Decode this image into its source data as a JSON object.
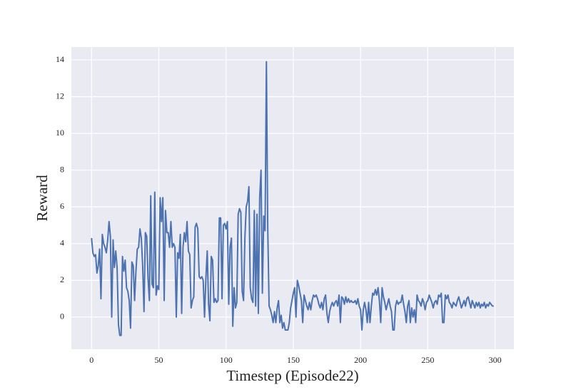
{
  "chart_data": {
    "type": "line",
    "xlabel": "Timestep (Episode22)",
    "ylabel": "Reward",
    "color": "#4c72b0",
    "grid": true,
    "background": "#eaeaf2",
    "xlim": [
      -15,
      314
    ],
    "ylim": [
      -1.75,
      14.7
    ],
    "xticks": [
      0,
      50,
      100,
      150,
      200,
      250,
      300
    ],
    "yticks": [
      0,
      2,
      4,
      6,
      8,
      10,
      12,
      14
    ],
    "x": [
      0,
      1,
      2,
      3,
      4,
      5,
      6,
      7,
      8,
      9,
      10,
      11,
      12,
      13,
      14,
      15,
      16,
      17,
      18,
      19,
      20,
      21,
      22,
      23,
      24,
      25,
      26,
      27,
      28,
      29,
      30,
      31,
      32,
      33,
      34,
      35,
      36,
      37,
      38,
      39,
      40,
      41,
      42,
      43,
      44,
      45,
      46,
      47,
      48,
      49,
      50,
      51,
      52,
      53,
      54,
      55,
      56,
      57,
      58,
      59,
      60,
      61,
      62,
      63,
      64,
      65,
      66,
      67,
      68,
      69,
      70,
      71,
      72,
      73,
      74,
      75,
      76,
      77,
      78,
      79,
      80,
      81,
      82,
      83,
      84,
      85,
      86,
      87,
      88,
      89,
      90,
      91,
      92,
      93,
      94,
      95,
      96,
      97,
      98,
      99,
      100,
      101,
      102,
      103,
      104,
      105,
      106,
      107,
      108,
      109,
      110,
      111,
      112,
      113,
      114,
      115,
      116,
      117,
      118,
      119,
      120,
      121,
      122,
      123,
      124,
      125,
      126,
      127,
      128,
      129,
      130,
      131,
      132,
      133,
      134,
      135,
      136,
      137,
      138,
      139,
      140,
      141,
      142,
      143,
      144,
      145,
      146,
      147,
      148,
      149,
      150,
      151,
      152,
      153,
      154,
      155,
      156,
      157,
      158,
      159,
      160,
      161,
      162,
      163,
      164,
      165,
      166,
      167,
      168,
      169,
      170,
      171,
      172,
      173,
      174,
      175,
      176,
      177,
      178,
      179,
      180,
      181,
      182,
      183,
      184,
      185,
      186,
      187,
      188,
      189,
      190,
      191,
      192,
      193,
      194,
      195,
      196,
      197,
      198,
      199,
      200,
      201,
      202,
      203,
      204,
      205,
      206,
      207,
      208,
      209,
      210,
      211,
      212,
      213,
      214,
      215,
      216,
      217,
      218,
      219,
      220,
      221,
      222,
      223,
      224,
      225,
      226,
      227,
      228,
      229,
      230,
      231,
      232,
      233,
      234,
      235,
      236,
      237,
      238,
      239,
      240,
      241,
      242,
      243,
      244,
      245,
      246,
      247,
      248,
      249,
      250,
      251,
      252,
      253,
      254,
      255,
      256,
      257,
      258,
      259,
      260,
      261,
      262,
      263,
      264,
      265,
      266,
      267,
      268,
      269,
      270,
      271,
      272,
      273,
      274,
      275,
      276,
      277,
      278,
      279,
      280,
      281,
      282,
      283,
      284,
      285,
      286,
      287,
      288,
      289,
      290,
      291,
      292,
      293,
      294,
      295,
      296,
      297,
      298,
      299
    ],
    "values": [
      4.3,
      3.5,
      3.3,
      3.4,
      2.4,
      2.8,
      3.7,
      1.0,
      4.5,
      4.0,
      3.8,
      3.5,
      4.2,
      5.2,
      4.4,
      0.0,
      4.2,
      2.7,
      3.6,
      2.7,
      -0.4,
      -1.0,
      -1.0,
      3.3,
      2.5,
      3.1,
      1.6,
      1.4,
      0.9,
      -0.6,
      3.0,
      2.8,
      0.9,
      2.5,
      3.7,
      3.8,
      4.8,
      4.3,
      2.8,
      0.3,
      4.6,
      4.4,
      2.1,
      0.9,
      6.6,
      1.8,
      1.6,
      6.8,
      1.2,
      1.7,
      1.5,
      6.5,
      5.2,
      6.5,
      0.9,
      5.8,
      4.6,
      4.6,
      3.8,
      5.2,
      3.8,
      4.0,
      3.8,
      0.0,
      3.5,
      3.2,
      4.5,
      0.2,
      3.8,
      4.6,
      4.1,
      5.2,
      3.6,
      3.4,
      0.5,
      0.9,
      1.1,
      4.9,
      5.1,
      4.8,
      2.2,
      2.1,
      2.2,
      2.0,
      0.0,
      2.1,
      3.6,
      0.7,
      -0.2,
      3.3,
      3.1,
      0.8,
      1.0,
      0.8,
      0.9,
      5.4,
      5.4,
      1.0,
      5.0,
      5.1,
      4.8,
      5.2,
      0.7,
      3.8,
      4.3,
      -0.5,
      1.6,
      0.5,
      0.8,
      5.6,
      5.9,
      5.7,
      1.4,
      0.9,
      4.3,
      6.0,
      6.3,
      7.1,
      1.6,
      1.0,
      0.8,
      5.8,
      0.6,
      5.6,
      0.2,
      6.5,
      8.0,
      1.3,
      5.5,
      4.7,
      13.9,
      4.8,
      0.6,
      0.4,
      0.1,
      -0.3,
      0.3,
      -0.3,
      0.5,
      0.9,
      -0.3,
      0.1,
      -0.6,
      -0.3,
      -0.7,
      -0.7,
      -0.7,
      -0.3,
      0.5,
      0.9,
      1.3,
      1.6,
      0.0,
      2.0,
      1.7,
      1.3,
      0.9,
      -0.3,
      1.2,
      0.9,
      0.6,
      0.4,
      0.8,
      0.4,
      0.9,
      1.2,
      1.1,
      1.2,
      1.0,
      0.7,
      0.5,
      0.8,
      0.4,
      1.0,
      1.2,
      0.2,
      -0.3,
      0.3,
      0.6,
      0.8,
      0.6,
      0.8,
      0.9,
      0.6,
      1.2,
      -0.3,
      1.1,
      1.0,
      0.7,
      1.1,
      0.8,
      1.0,
      0.8,
      0.9,
      0.8,
      0.8,
      0.9,
      0.7,
      1.0,
      0.6,
      0.4,
      -0.7,
      0.4,
      0.8,
      0.4,
      -0.3,
      0.8,
      -0.3,
      0.6,
      1.3,
      1.2,
      1.5,
      1.2,
      1.6,
      0.9,
      -0.3,
      1.6,
      1.1,
      0.8,
      0.4,
      0.7,
      1.0,
      0.6,
      0.3,
      -0.7,
      -0.7,
      0.6,
      0.9,
      0.7,
      0.8,
      0.8,
      1.2,
      0.7,
      0.3,
      -0.3,
      0.6,
      0.9,
      -0.3,
      0.5,
      0.0,
      0.4,
      -0.3,
      1.2,
      0.9,
      0.8,
      0.6,
      1.0,
      0.8,
      0.4,
      0.8,
      0.9,
      1.2,
      1.0,
      0.8,
      0.5,
      0.8,
      0.9,
      0.7,
      1.2,
      1.1,
      1.3,
      -0.3,
      -0.3,
      1.2,
      1.0,
      1.2,
      0.8,
      0.7,
      0.5,
      0.8,
      0.7,
      0.6,
      0.9,
      1.1,
      0.8,
      0.5,
      0.7,
      0.9,
      0.6,
      1.0,
      1.1,
      0.8,
      0.5,
      0.9,
      0.7,
      0.5,
      0.8,
      0.6,
      0.8,
      0.5,
      0.7,
      0.6,
      0.8,
      0.5,
      0.7,
      0.6,
      0.8,
      0.7,
      0.6,
      0.6
    ]
  }
}
